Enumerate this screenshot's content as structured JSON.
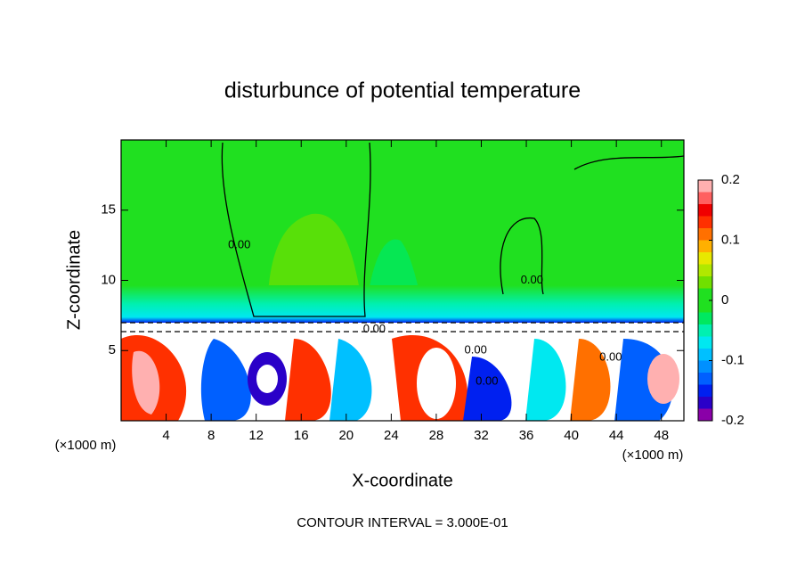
{
  "chart_data": {
    "type": "contour",
    "title": "disturbunce of potential temperature",
    "xlabel": "X-coordinate",
    "ylabel": "Z-coordinate",
    "x_unit_label": "(×1000 m)",
    "xlim": [
      0,
      50
    ],
    "xticks": [
      4,
      8,
      12,
      16,
      20,
      24,
      28,
      32,
      36,
      40,
      44,
      48
    ],
    "ylim": [
      0,
      20
    ],
    "yticks": [
      5,
      10,
      15
    ],
    "footnote": "CONTOUR INTERVAL = 3.000E-01",
    "contour_labels": [
      {
        "text": "0.00",
        "x": 10.5,
        "y": 12.5
      },
      {
        "text": "0.00",
        "x": 22.5,
        "y": 6.5
      },
      {
        "text": "0.00",
        "x": 31.5,
        "y": 5
      },
      {
        "text": "0.00",
        "x": 32.5,
        "y": 2.8
      },
      {
        "text": "0.00",
        "x": 36.5,
        "y": 10
      },
      {
        "text": "0.00",
        "x": 43.5,
        "y": 4.5
      }
    ],
    "colorbar": {
      "lim": [
        -0.2,
        0.2
      ],
      "ticks": [
        -0.2,
        -0.1,
        0,
        0.1,
        0.2
      ],
      "levels": [
        -0.2,
        -0.18,
        -0.16,
        -0.14,
        -0.12,
        -0.1,
        -0.08,
        -0.06,
        -0.04,
        -0.02,
        0,
        0.02,
        0.04,
        0.06,
        0.08,
        0.1,
        0.12,
        0.14,
        0.16,
        0.18,
        0.2
      ],
      "colors": [
        "#8a00a8",
        "#2a00c8",
        "#0020f0",
        "#0060ff",
        "#0090ff",
        "#00c0ff",
        "#00e8f0",
        "#00f0b0",
        "#00e860",
        "#20e020",
        "#20e020",
        "#70e000",
        "#b0e800",
        "#e8e800",
        "#ffb000",
        "#ff7000",
        "#ff3000",
        "#f00000",
        "#ff6060",
        "#ffb0b0"
      ]
    }
  }
}
